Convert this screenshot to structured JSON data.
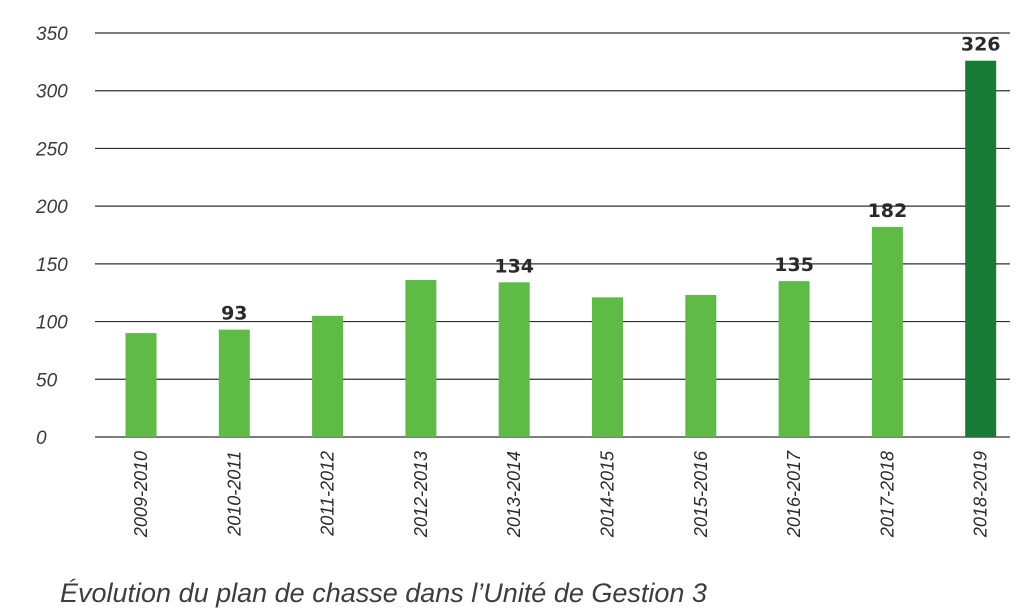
{
  "caption": "Évolution du plan de chasse dans l’Unité de Gestion 3",
  "colors": {
    "bar": "#5dbb46",
    "bar_highlight": "#177a35",
    "grid": "#2f2f2f"
  },
  "chart_data": {
    "type": "bar",
    "title": "",
    "xlabel": "",
    "ylabel": "",
    "ylim": [
      0,
      350
    ],
    "yticks": [
      0,
      50,
      100,
      150,
      200,
      250,
      300,
      350
    ],
    "grid": true,
    "categories": [
      "2009-2010",
      "2010-2011",
      "2011-2012",
      "2012-2013",
      "2013-2014",
      "2014-2015",
      "2015-2016",
      "2016-2017",
      "2017-2018",
      "2018-2019"
    ],
    "values": [
      90,
      93,
      105,
      136,
      134,
      121,
      123,
      135,
      182,
      326
    ],
    "data_labels": [
      "",
      "93",
      "",
      "",
      "134",
      "",
      "",
      "135",
      "182",
      "326"
    ],
    "highlight_index": 9
  }
}
